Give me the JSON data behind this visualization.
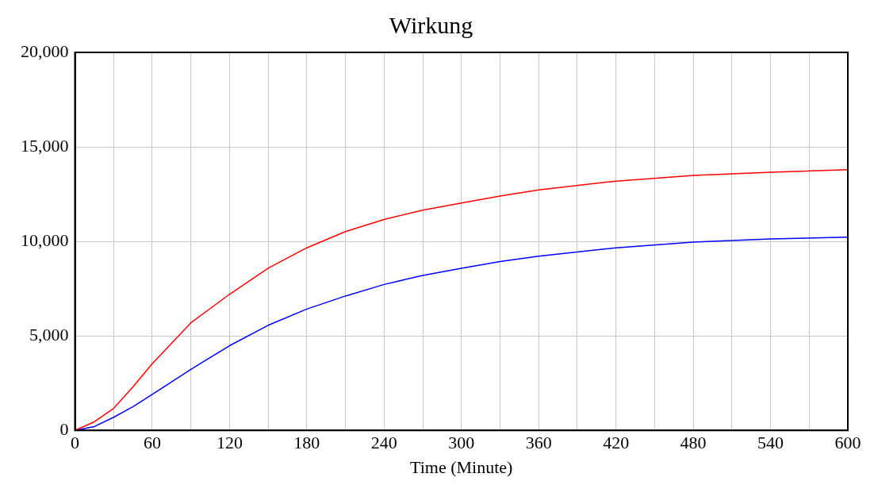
{
  "chart_data": {
    "type": "line",
    "title": "Wirkung",
    "xlabel": "Time (Minute)",
    "x": [
      0,
      15,
      30,
      45,
      60,
      90,
      120,
      150,
      180,
      210,
      240,
      270,
      300,
      330,
      360,
      420,
      480,
      540,
      600
    ],
    "series": [
      {
        "color": "#ff0000",
        "values": [
          0,
          450,
          1160,
          2300,
          3530,
          5690,
          7200,
          8580,
          9660,
          10520,
          11160,
          11650,
          12030,
          12400,
          12720,
          13190,
          13490,
          13660,
          13790
        ]
      },
      {
        "color": "#0000ff",
        "values": [
          0,
          200,
          690,
          1250,
          1900,
          3230,
          4480,
          5560,
          6420,
          7110,
          7720,
          8200,
          8580,
          8930,
          9220,
          9660,
          9960,
          10130,
          10220
        ]
      }
    ],
    "xlim": [
      0,
      600
    ],
    "xticks": [
      0,
      {
        "value": 30,
        "label": null
      },
      60,
      {
        "value": 90,
        "label": null
      },
      120,
      {
        "value": 150,
        "label": null
      },
      180,
      {
        "value": 210,
        "label": null
      },
      240,
      {
        "value": 270,
        "label": null
      },
      300,
      {
        "value": 330,
        "label": null
      },
      360,
      {
        "value": 390,
        "label": null
      },
      420,
      {
        "value": 450,
        "label": null
      },
      480,
      {
        "value": 510,
        "label": null
      },
      540,
      {
        "value": 570,
        "label": null
      },
      600
    ],
    "ylim": [
      0,
      20000
    ],
    "yticks": [
      0,
      {
        "value": 5000,
        "label": "5,000"
      },
      {
        "value": 10000,
        "label": "10,000"
      },
      {
        "value": 15000,
        "label": "15,000"
      },
      {
        "value": 20000,
        "label": "20,000"
      }
    ],
    "grid": true,
    "legend": false,
    "marker": "none",
    "line_style": "solid"
  }
}
